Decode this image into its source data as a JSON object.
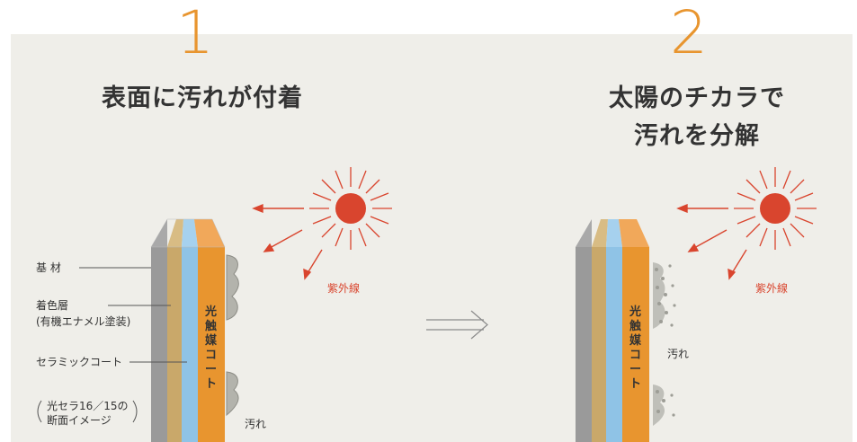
{
  "step1": {
    "number": "1",
    "title": "表面に汚れが付着"
  },
  "step2": {
    "number": "2",
    "title_line1": "太陽のチカラで",
    "title_line2": "汚れを分解"
  },
  "labels": {
    "substrate": "基 材",
    "colored_layer": "着色層",
    "colored_layer_sub": "(有機エナメル塗装)",
    "ceramic_coat": "セラミックコート",
    "note_line1": "光セラ16／15の",
    "note_line2": "断面イメージ",
    "photocatalyst": [
      "光",
      "触",
      "媒",
      "コ",
      "ー",
      "ト"
    ],
    "uv": "紫外線",
    "dirt": "汚れ"
  },
  "icons": [
    "sun-icon",
    "uv-arrow-icon",
    "double-arrow-icon"
  ],
  "colors": {
    "accent_orange": "#e8952f",
    "sun_red": "#d9452e",
    "layer_gray": "#9a9a9a",
    "layer_tan": "#c9a86a",
    "layer_blue": "#8fc3e6",
    "layer_orange": "#e8952f",
    "background": "#efeee9"
  }
}
